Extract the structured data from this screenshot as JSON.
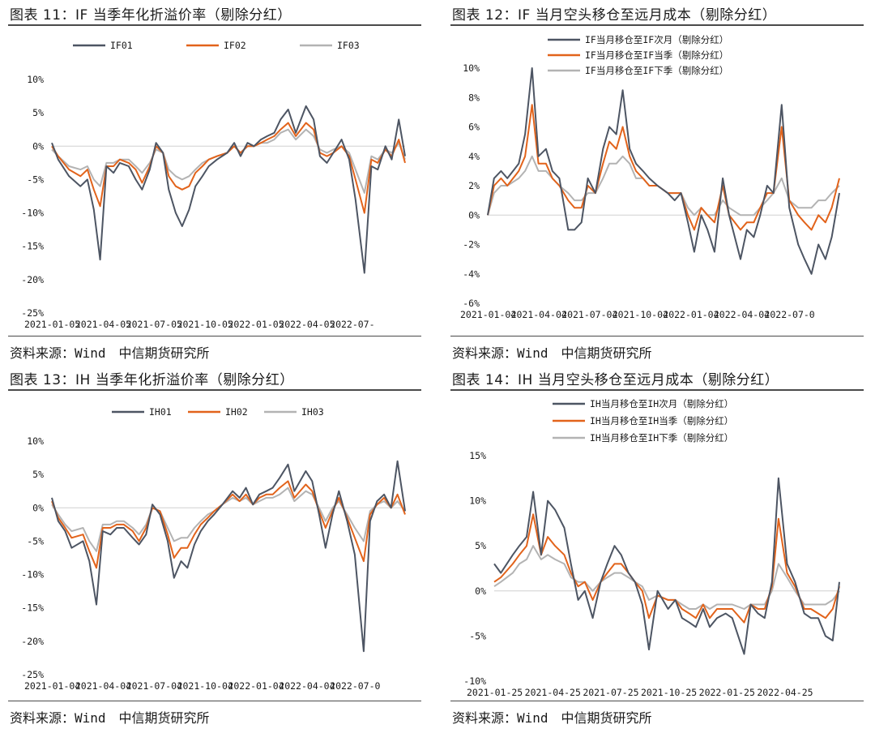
{
  "panels": [
    {
      "title": "图表 11：IF 当季年化折溢价率（剔除分红）",
      "source": "资料来源：Wind　中信期货研究所"
    },
    {
      "title": "图表 12：IF 当月空头移仓至远月成本（剔除分红）",
      "source": "资料来源：Wind　中信期货研究所"
    },
    {
      "title": "图表 13：IH 当季年化折溢价率（剔除分红）",
      "source": "资料来源：Wind　中信期货研究所"
    },
    {
      "title": "图表 14：IH 当月空头移仓至远月成本（剔除分红）",
      "source": "资料来源：Wind　中信期货研究所"
    }
  ],
  "colors": {
    "dark": "#4d5563",
    "orange": "#e2631b",
    "gray": "#b3b3b3",
    "zero_line": "#d0d0d0"
  },
  "chart_data": [
    {
      "type": "line",
      "title": "",
      "xlabel": "",
      "ylabel": "",
      "ylim": [
        -25,
        10
      ],
      "yticks": [
        10,
        5,
        0,
        -5,
        -10,
        -15,
        -20,
        -25
      ],
      "ytick_labels": [
        "10%",
        "5%",
        "0%",
        "-5%",
        "-10%",
        "-15%",
        "-20%",
        "-25%"
      ],
      "x_dates": [
        "2021-01-05",
        "2021-01-15",
        "2021-02-01",
        "2021-02-19",
        "2021-03-02",
        "2021-03-12",
        "2021-03-22",
        "2021-04-01",
        "2021-04-12",
        "2021-04-22",
        "2021-05-06",
        "2021-05-17",
        "2021-05-27",
        "2021-06-08",
        "2021-06-18",
        "2021-06-29",
        "2021-07-08",
        "2021-07-19",
        "2021-07-29",
        "2021-08-09",
        "2021-08-19",
        "2021-08-30",
        "2021-09-09",
        "2021-09-22",
        "2021-10-08",
        "2021-10-19",
        "2021-10-29",
        "2021-11-09",
        "2021-11-19",
        "2021-11-30",
        "2021-12-10",
        "2021-12-21",
        "2021-12-31",
        "2022-01-12",
        "2022-01-24",
        "2022-02-09",
        "2022-02-21",
        "2022-03-03",
        "2022-03-14",
        "2022-03-24",
        "2022-04-06",
        "2022-04-18",
        "2022-04-28",
        "2022-05-12",
        "2022-05-23",
        "2022-06-02",
        "2022-06-14",
        "2022-06-24",
        "2022-07-05",
        "2022-07-15"
      ],
      "xtick_labels": [
        "2021-01-05",
        "2021-04-05",
        "2021-07-05",
        "2021-10-05",
        "2022-01-05",
        "2022-04-05",
        "2022-07-"
      ],
      "series": [
        {
          "name": "IF01",
          "color": "dark",
          "values": [
            0.5,
            -2,
            -4.5,
            -6,
            -5,
            -9.5,
            -17,
            -3,
            -4,
            -2.5,
            -3,
            -5,
            -6.5,
            -3.5,
            0.5,
            -1,
            -6.5,
            -10,
            -12,
            -9.5,
            -6,
            -4.5,
            -3,
            -2,
            -1,
            0.5,
            -1.5,
            0.5,
            0,
            1,
            1.5,
            2,
            4,
            5.5,
            2,
            6,
            4,
            -1.5,
            -2.5,
            -1,
            1,
            -2,
            -8,
            -19,
            -3,
            -3.5,
            0,
            -2,
            4,
            -1.5
          ]
        },
        {
          "name": "IF02",
          "color": "orange",
          "values": [
            0,
            -1.5,
            -3.5,
            -4.5,
            -3.5,
            -6.5,
            -9,
            -3,
            -3,
            -2,
            -2.5,
            -3.5,
            -5.5,
            -3,
            0,
            -1,
            -4.5,
            -6,
            -6.5,
            -6,
            -4,
            -3,
            -2,
            -1.5,
            -1,
            0,
            -1,
            0,
            0,
            0.5,
            1,
            1.5,
            2.5,
            3.5,
            1.5,
            3.5,
            2.5,
            -1,
            -1.5,
            -1,
            0,
            -1.5,
            -5,
            -10,
            -2,
            -2.5,
            -0.5,
            -1.5,
            1,
            -2.5
          ]
        },
        {
          "name": "IF03",
          "color": "gray",
          "values": [
            -0.5,
            -1.5,
            -3,
            -3.5,
            -3,
            -5,
            -6,
            -2.5,
            -2.5,
            -2,
            -2,
            -3,
            -4,
            -2.5,
            -0.5,
            -1,
            -3.5,
            -4.5,
            -5,
            -4.5,
            -3.5,
            -2.5,
            -2,
            -1.5,
            -1,
            0,
            -1,
            0,
            0,
            0.5,
            0.5,
            1,
            2,
            2.5,
            1,
            2.5,
            1.5,
            -0.5,
            -1,
            -0.5,
            0,
            -1,
            -3.5,
            -7,
            -1.5,
            -2,
            -0.5,
            -1,
            0.5,
            -2
          ]
        }
      ]
    },
    {
      "type": "line",
      "title": "",
      "xlabel": "",
      "ylabel": "",
      "ylim": [
        -6,
        10
      ],
      "yticks": [
        10,
        8,
        6,
        4,
        2,
        0,
        -2,
        -4,
        -6
      ],
      "ytick_labels": [
        "10%",
        "8%",
        "6%",
        "4%",
        "2%",
        "0%",
        "-2%",
        "-4%",
        "-6%"
      ],
      "x_dates": [
        "2021-01-04",
        "2021-01-14",
        "2021-01-25",
        "2021-02-04",
        "2021-02-22",
        "2021-03-04",
        "2021-03-15",
        "2021-03-25",
        "2021-04-06",
        "2021-04-16",
        "2021-04-27",
        "2021-05-11",
        "2021-05-21",
        "2021-06-01",
        "2021-06-11",
        "2021-06-23",
        "2021-07-05",
        "2021-07-15",
        "2021-07-26",
        "2021-08-05",
        "2021-08-16",
        "2021-08-26",
        "2021-09-06",
        "2021-09-16",
        "2021-09-29",
        "2021-10-15",
        "2021-10-26",
        "2021-11-05",
        "2021-11-16",
        "2021-11-26",
        "2021-12-07",
        "2021-12-17",
        "2021-12-28",
        "2022-01-10",
        "2022-01-20",
        "2022-02-07",
        "2022-02-17",
        "2022-02-28",
        "2022-03-10",
        "2022-03-21",
        "2022-03-31",
        "2022-04-13",
        "2022-04-25",
        "2022-05-09",
        "2022-05-19",
        "2022-05-30",
        "2022-06-10",
        "2022-06-21",
        "2022-07-01",
        "2022-07-13"
      ],
      "xtick_labels": [
        "2021-01-04",
        "2021-04-04",
        "2021-07-04",
        "2021-10-04",
        "2022-01-04",
        "2022-04-04",
        "2022-07-0"
      ],
      "series": [
        {
          "name": "IF当月移仓至IF次月（剔除分红）",
          "color": "dark",
          "values": [
            0,
            2.5,
            3,
            2.5,
            3.5,
            5.5,
            10,
            4,
            4.5,
            3,
            2.5,
            -1,
            -1,
            -0.5,
            2.5,
            1.5,
            4.5,
            6,
            5.5,
            8.5,
            4.5,
            3.5,
            3,
            2.5,
            2,
            1.5,
            1,
            1.5,
            -0.5,
            -2.5,
            0,
            -1,
            -2.5,
            2.5,
            0,
            -3,
            -1,
            -1.5,
            0,
            2,
            1.5,
            7.5,
            0.5,
            -2,
            -3,
            -4,
            -2,
            -3,
            -1.5,
            1.5
          ]
        },
        {
          "name": "IF当月移仓至IF当季（剔除分红）",
          "color": "orange",
          "values": [
            0,
            2,
            2.5,
            2,
            3,
            4,
            7.5,
            3.5,
            3.5,
            2.5,
            2,
            1,
            0.5,
            0.5,
            2,
            1.5,
            3.5,
            5,
            4.5,
            6,
            4,
            3,
            2.5,
            2,
            2,
            1.5,
            1.5,
            1.5,
            0,
            -1,
            0.5,
            0,
            -0.5,
            2,
            0,
            -1,
            -0.5,
            -0.5,
            0.5,
            1.5,
            1.5,
            6,
            1,
            0,
            -0.5,
            -1,
            0,
            -0.5,
            0.5,
            2.5
          ]
        },
        {
          "name": "IF当月移仓至IF下季（剔除分红）",
          "color": "gray",
          "values": [
            0,
            1.5,
            2,
            2,
            2.5,
            3,
            4,
            3,
            3,
            2.5,
            2,
            1.5,
            1,
            1,
            1.5,
            1.5,
            2.5,
            3.5,
            3.5,
            4,
            3.5,
            2.5,
            2.5,
            2,
            2,
            1.5,
            1.5,
            1.5,
            0.5,
            0,
            0.5,
            0,
            0,
            1,
            0.5,
            0,
            0,
            0,
            0.5,
            1,
            1.5,
            2.5,
            1,
            0.5,
            0.5,
            0.5,
            1,
            1,
            1.5,
            2
          ]
        }
      ]
    },
    {
      "type": "line",
      "title": "",
      "xlabel": "",
      "ylabel": "",
      "ylim": [
        -25,
        10
      ],
      "yticks": [
        10,
        5,
        0,
        -5,
        -10,
        -15,
        -20,
        -25
      ],
      "ytick_labels": [
        "10%",
        "5%",
        "0%",
        "-5%",
        "-10%",
        "-15%",
        "-20%",
        "-25%"
      ],
      "x_dates": [
        "2021-01-04",
        "2021-01-14",
        "2021-01-25",
        "2021-02-04",
        "2021-02-22",
        "2021-03-04",
        "2021-03-15",
        "2021-03-25",
        "2021-04-06",
        "2021-04-16",
        "2021-04-27",
        "2021-05-11",
        "2021-05-21",
        "2021-06-01",
        "2021-06-11",
        "2021-06-23",
        "2021-07-05",
        "2021-07-15",
        "2021-07-26",
        "2021-08-05",
        "2021-08-16",
        "2021-08-26",
        "2021-09-06",
        "2021-09-16",
        "2021-09-29",
        "2021-10-15",
        "2021-10-26",
        "2021-11-05",
        "2021-11-16",
        "2021-11-26",
        "2021-12-07",
        "2021-12-17",
        "2021-12-28",
        "2022-01-10",
        "2022-01-20",
        "2022-02-07",
        "2022-02-17",
        "2022-02-28",
        "2022-03-10",
        "2022-03-21",
        "2022-03-31",
        "2022-04-13",
        "2022-04-25",
        "2022-05-09",
        "2022-05-19",
        "2022-05-30",
        "2022-06-10",
        "2022-06-21",
        "2022-07-01",
        "2022-07-13"
      ],
      "xtick_labels": [
        "2021-01-04",
        "2021-04-04",
        "2021-07-04",
        "2021-10-04",
        "2022-01-04",
        "2022-04-04",
        "2022-07-0"
      ],
      "series": [
        {
          "name": "IH01",
          "color": "dark",
          "values": [
            1.5,
            -2,
            -3.5,
            -6,
            -5,
            -8,
            -14.5,
            -3.5,
            -4,
            -3,
            -3,
            -4.5,
            -5.5,
            -4,
            0.5,
            -1,
            -5,
            -10.5,
            -8,
            -9,
            -5.5,
            -3.5,
            -2,
            -1,
            0.5,
            2.5,
            1.5,
            3,
            0.5,
            2,
            2.5,
            3,
            4.5,
            6.5,
            2.5,
            5.5,
            4,
            -1,
            -6,
            -1,
            2.5,
            -2,
            -7,
            -21.5,
            -2,
            1,
            2,
            0,
            7,
            -0.5
          ]
        },
        {
          "name": "IH02",
          "color": "orange",
          "values": [
            1,
            -1.5,
            -3,
            -4.5,
            -4,
            -6.5,
            -9,
            -3,
            -3,
            -2.5,
            -2.5,
            -3.5,
            -5,
            -3,
            0,
            -0.5,
            -4,
            -7.5,
            -6,
            -6,
            -4,
            -2.5,
            -1.5,
            -0.5,
            0.5,
            2,
            1,
            2,
            0.5,
            1.5,
            2,
            2,
            3,
            4,
            1.5,
            3.5,
            2.5,
            -0.5,
            -3,
            -0.5,
            1.5,
            -1.5,
            -4.5,
            -8,
            -1,
            0.5,
            1.5,
            0,
            2,
            -1
          ]
        },
        {
          "name": "IH03",
          "color": "gray",
          "values": [
            0.5,
            -1,
            -2.5,
            -3.5,
            -3,
            -5,
            -6.5,
            -2.5,
            -2.5,
            -2,
            -2,
            -3,
            -4,
            -2.5,
            0,
            -0.5,
            -3,
            -5,
            -4.5,
            -4.5,
            -3,
            -2,
            -1,
            -0.5,
            0.5,
            1.5,
            1,
            1.5,
            0.5,
            1,
            1.5,
            1.5,
            2,
            3,
            1,
            2.5,
            2,
            0,
            -2,
            0,
            1,
            -1,
            -3,
            -5,
            -0.5,
            0.5,
            1,
            0,
            1,
            -0.5
          ]
        }
      ]
    },
    {
      "type": "line",
      "title": "",
      "xlabel": "",
      "ylabel": "",
      "ylim": [
        -10,
        15
      ],
      "yticks": [
        15,
        10,
        5,
        0,
        -5,
        -10
      ],
      "ytick_labels": [
        "15%",
        "10%",
        "5%",
        "0%",
        "-5%",
        "-10%"
      ],
      "x_dates": [
        "2021-01-25",
        "2021-02-04",
        "2021-02-22",
        "2021-03-04",
        "2021-03-15",
        "2021-03-25",
        "2021-04-06",
        "2021-04-16",
        "2021-04-27",
        "2021-05-11",
        "2021-05-21",
        "2021-06-01",
        "2021-06-11",
        "2021-06-23",
        "2021-07-05",
        "2021-07-15",
        "2021-07-26",
        "2021-08-05",
        "2021-08-16",
        "2021-08-26",
        "2021-09-06",
        "2021-09-16",
        "2021-09-29",
        "2021-10-15",
        "2021-10-26",
        "2021-11-05",
        "2021-11-16",
        "2021-11-26",
        "2021-12-07",
        "2021-12-17",
        "2021-12-28",
        "2022-01-10",
        "2022-01-20",
        "2022-02-07",
        "2022-02-17",
        "2022-02-28",
        "2022-03-10",
        "2022-03-21",
        "2022-03-31",
        "2022-04-13",
        "2022-04-25",
        "2022-05-09",
        "2022-05-19",
        "2022-05-30",
        "2022-06-10",
        "2022-06-21",
        "2022-07-01"
      ],
      "xtick_labels": [
        "2021-01-25",
        "2021-04-25",
        "2021-07-25",
        "2021-10-25",
        "2022-01-25",
        "2022-04-25"
      ],
      "series": [
        {
          "name": "IH当月移仓至IH次月（剔除分红）",
          "color": "dark",
          "values": [
            3,
            2,
            4,
            5,
            6,
            11,
            4,
            10,
            9,
            7,
            3,
            -1,
            0,
            -3,
            1,
            3,
            5,
            4,
            2,
            1,
            -1.5,
            -6.5,
            0,
            -2,
            -1,
            -3,
            -3.5,
            -4,
            -2,
            -4,
            -3,
            -2.5,
            -3,
            -7,
            -1.5,
            -2.5,
            -3,
            1,
            12.5,
            3,
            1,
            -2.5,
            -3,
            -3,
            -5,
            -5.5,
            1
          ]
        },
        {
          "name": "IH当月移仓至IH当季（剔除分红）",
          "color": "orange",
          "values": [
            1,
            1.5,
            3,
            4,
            5,
            8.5,
            4,
            6,
            5,
            4,
            2,
            0.5,
            1,
            -1,
            1,
            2,
            3,
            3,
            2,
            1,
            0,
            -3,
            -0.5,
            -1,
            -1,
            -2,
            -2.5,
            -3,
            -1.5,
            -3,
            -2,
            -2,
            -2,
            -3.5,
            -1.5,
            -2,
            -2,
            0.5,
            8,
            2,
            0.5,
            -2,
            -2,
            -2.5,
            -3,
            -2,
            0.5
          ]
        },
        {
          "name": "IH当月移仓至IH下季（剔除分红）",
          "color": "gray",
          "values": [
            0.5,
            1,
            2,
            3,
            3.5,
            5,
            3.5,
            4,
            3.5,
            3,
            1.5,
            1,
            1,
            0,
            1,
            1.5,
            2,
            2,
            1.5,
            1,
            0.5,
            -1,
            -0.5,
            -1,
            -1,
            -1.5,
            -2,
            -2,
            -1.5,
            -2,
            -1.5,
            -1.5,
            -1.5,
            -2,
            -1.5,
            -1.5,
            -1.5,
            0,
            3,
            1.5,
            0,
            -1.5,
            -1.5,
            -1.5,
            -1.5,
            -1,
            0
          ]
        }
      ]
    }
  ]
}
